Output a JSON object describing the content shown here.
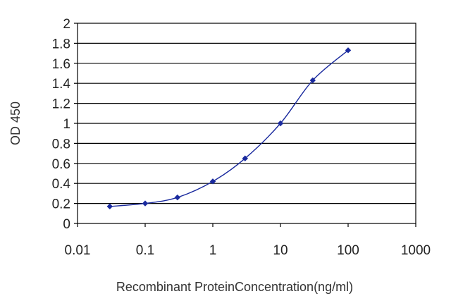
{
  "chart_data": {
    "type": "line",
    "xlabel": "Recombinant ProteinConcentration(ng/ml)",
    "ylabel": "OD 450",
    "x_scale": "log",
    "xlim": [
      0.01,
      1000
    ],
    "ylim": [
      0,
      2
    ],
    "x_ticks": [
      0.01,
      0.1,
      1,
      10,
      100,
      1000
    ],
    "x_tick_labels": [
      "0.01",
      "0.1",
      "1",
      "10",
      "100",
      "1000"
    ],
    "y_ticks": [
      0,
      0.2,
      0.4,
      0.6,
      0.8,
      1,
      1.2,
      1.4,
      1.6,
      1.8,
      2
    ],
    "y_tick_labels": [
      "0",
      "0.2",
      "0.4",
      "0.6",
      "0.8",
      "1",
      "1.2",
      "1.4",
      "1.6",
      "1.8",
      "2"
    ],
    "grid": "horizontal",
    "series": [
      {
        "color": "#1a2a9e",
        "x": [
          0.03,
          0.1,
          0.3,
          1,
          3,
          10,
          30,
          100
        ],
        "y": [
          0.17,
          0.2,
          0.26,
          0.42,
          0.65,
          1.0,
          1.43,
          1.73
        ]
      }
    ]
  }
}
